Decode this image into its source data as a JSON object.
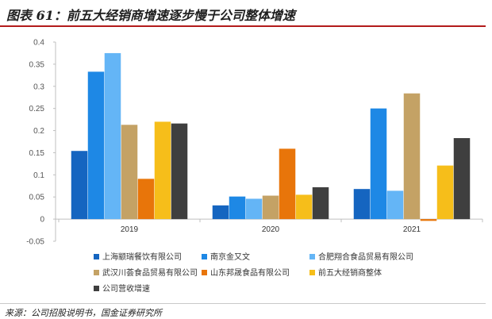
{
  "header": {
    "title": "图表 61：前五大经销商增速逐步慢于公司整体增速"
  },
  "footer": {
    "source": "来源：公司招股说明书，国金证券研究所"
  },
  "chart_data": {
    "type": "bar",
    "categories": [
      "2019",
      "2020",
      "2021"
    ],
    "ylim": [
      -0.05,
      0.4
    ],
    "yticks": [
      "0.4",
      "0.35",
      "0.3",
      "0.25",
      "0.2",
      "0.15",
      "0.1",
      "0.05",
      "0",
      "-0.05"
    ],
    "ytick_values": [
      0.4,
      0.35,
      0.3,
      0.25,
      0.2,
      0.15,
      0.1,
      0.05,
      0,
      -0.05
    ],
    "grid": false,
    "legend_position": "bottom",
    "series": [
      {
        "name": "上海颛瑞餐饮有限公司",
        "color": "#1565c0",
        "values": [
          0.154,
          0.031,
          0.068
        ]
      },
      {
        "name": "南京金又文",
        "color": "#1e88e5",
        "values": [
          0.333,
          0.051,
          0.25
        ]
      },
      {
        "name": "合肥翔合食品贸易有限公司",
        "color": "#64b5f6",
        "values": [
          0.375,
          0.046,
          0.064
        ]
      },
      {
        "name": "武汉川荟食品贸易有限公司",
        "color": "#c4a265",
        "values": [
          0.213,
          0.053,
          0.284
        ]
      },
      {
        "name": "山东邦晟食品有限公司",
        "color": "#e8750a",
        "values": [
          0.091,
          0.159,
          -0.004
        ]
      },
      {
        "name": "前五大经销商整体",
        "color": "#f6be1a",
        "values": [
          0.22,
          0.055,
          0.121
        ]
      },
      {
        "name": "公司营收增速",
        "color": "#3f3f3f",
        "values": [
          0.216,
          0.072,
          0.183
        ]
      }
    ]
  }
}
